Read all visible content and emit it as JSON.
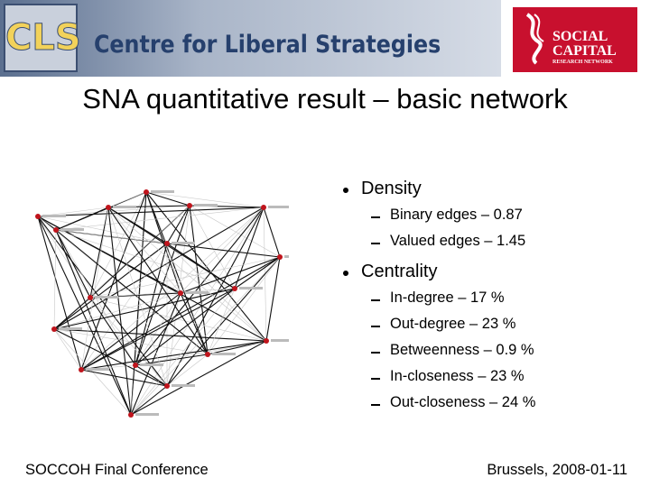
{
  "header": {
    "logo_text": "CLS",
    "organization": "Centre for Liberal Strategies",
    "partner_logo": {
      "line1": "SOCIAL",
      "line2": "CAPITAL",
      "line3": "RESEARCH NETWORK"
    }
  },
  "title": "SNA quantitative result – basic network",
  "bullets": [
    {
      "text": "Density",
      "items": [
        "Binary edges – 0.87",
        "Valued edges – 1.45"
      ]
    },
    {
      "text": "Centrality",
      "items": [
        "In-degree – 17 %",
        "Out-degree – 23 %",
        "Betweenness – 0.9 %",
        "In-closeness – 23 %",
        "Out-closeness – 24 %"
      ]
    }
  ],
  "footer": {
    "left": "SOCCOH Final Conference",
    "right": "Brussels, 2008-01-11"
  }
}
